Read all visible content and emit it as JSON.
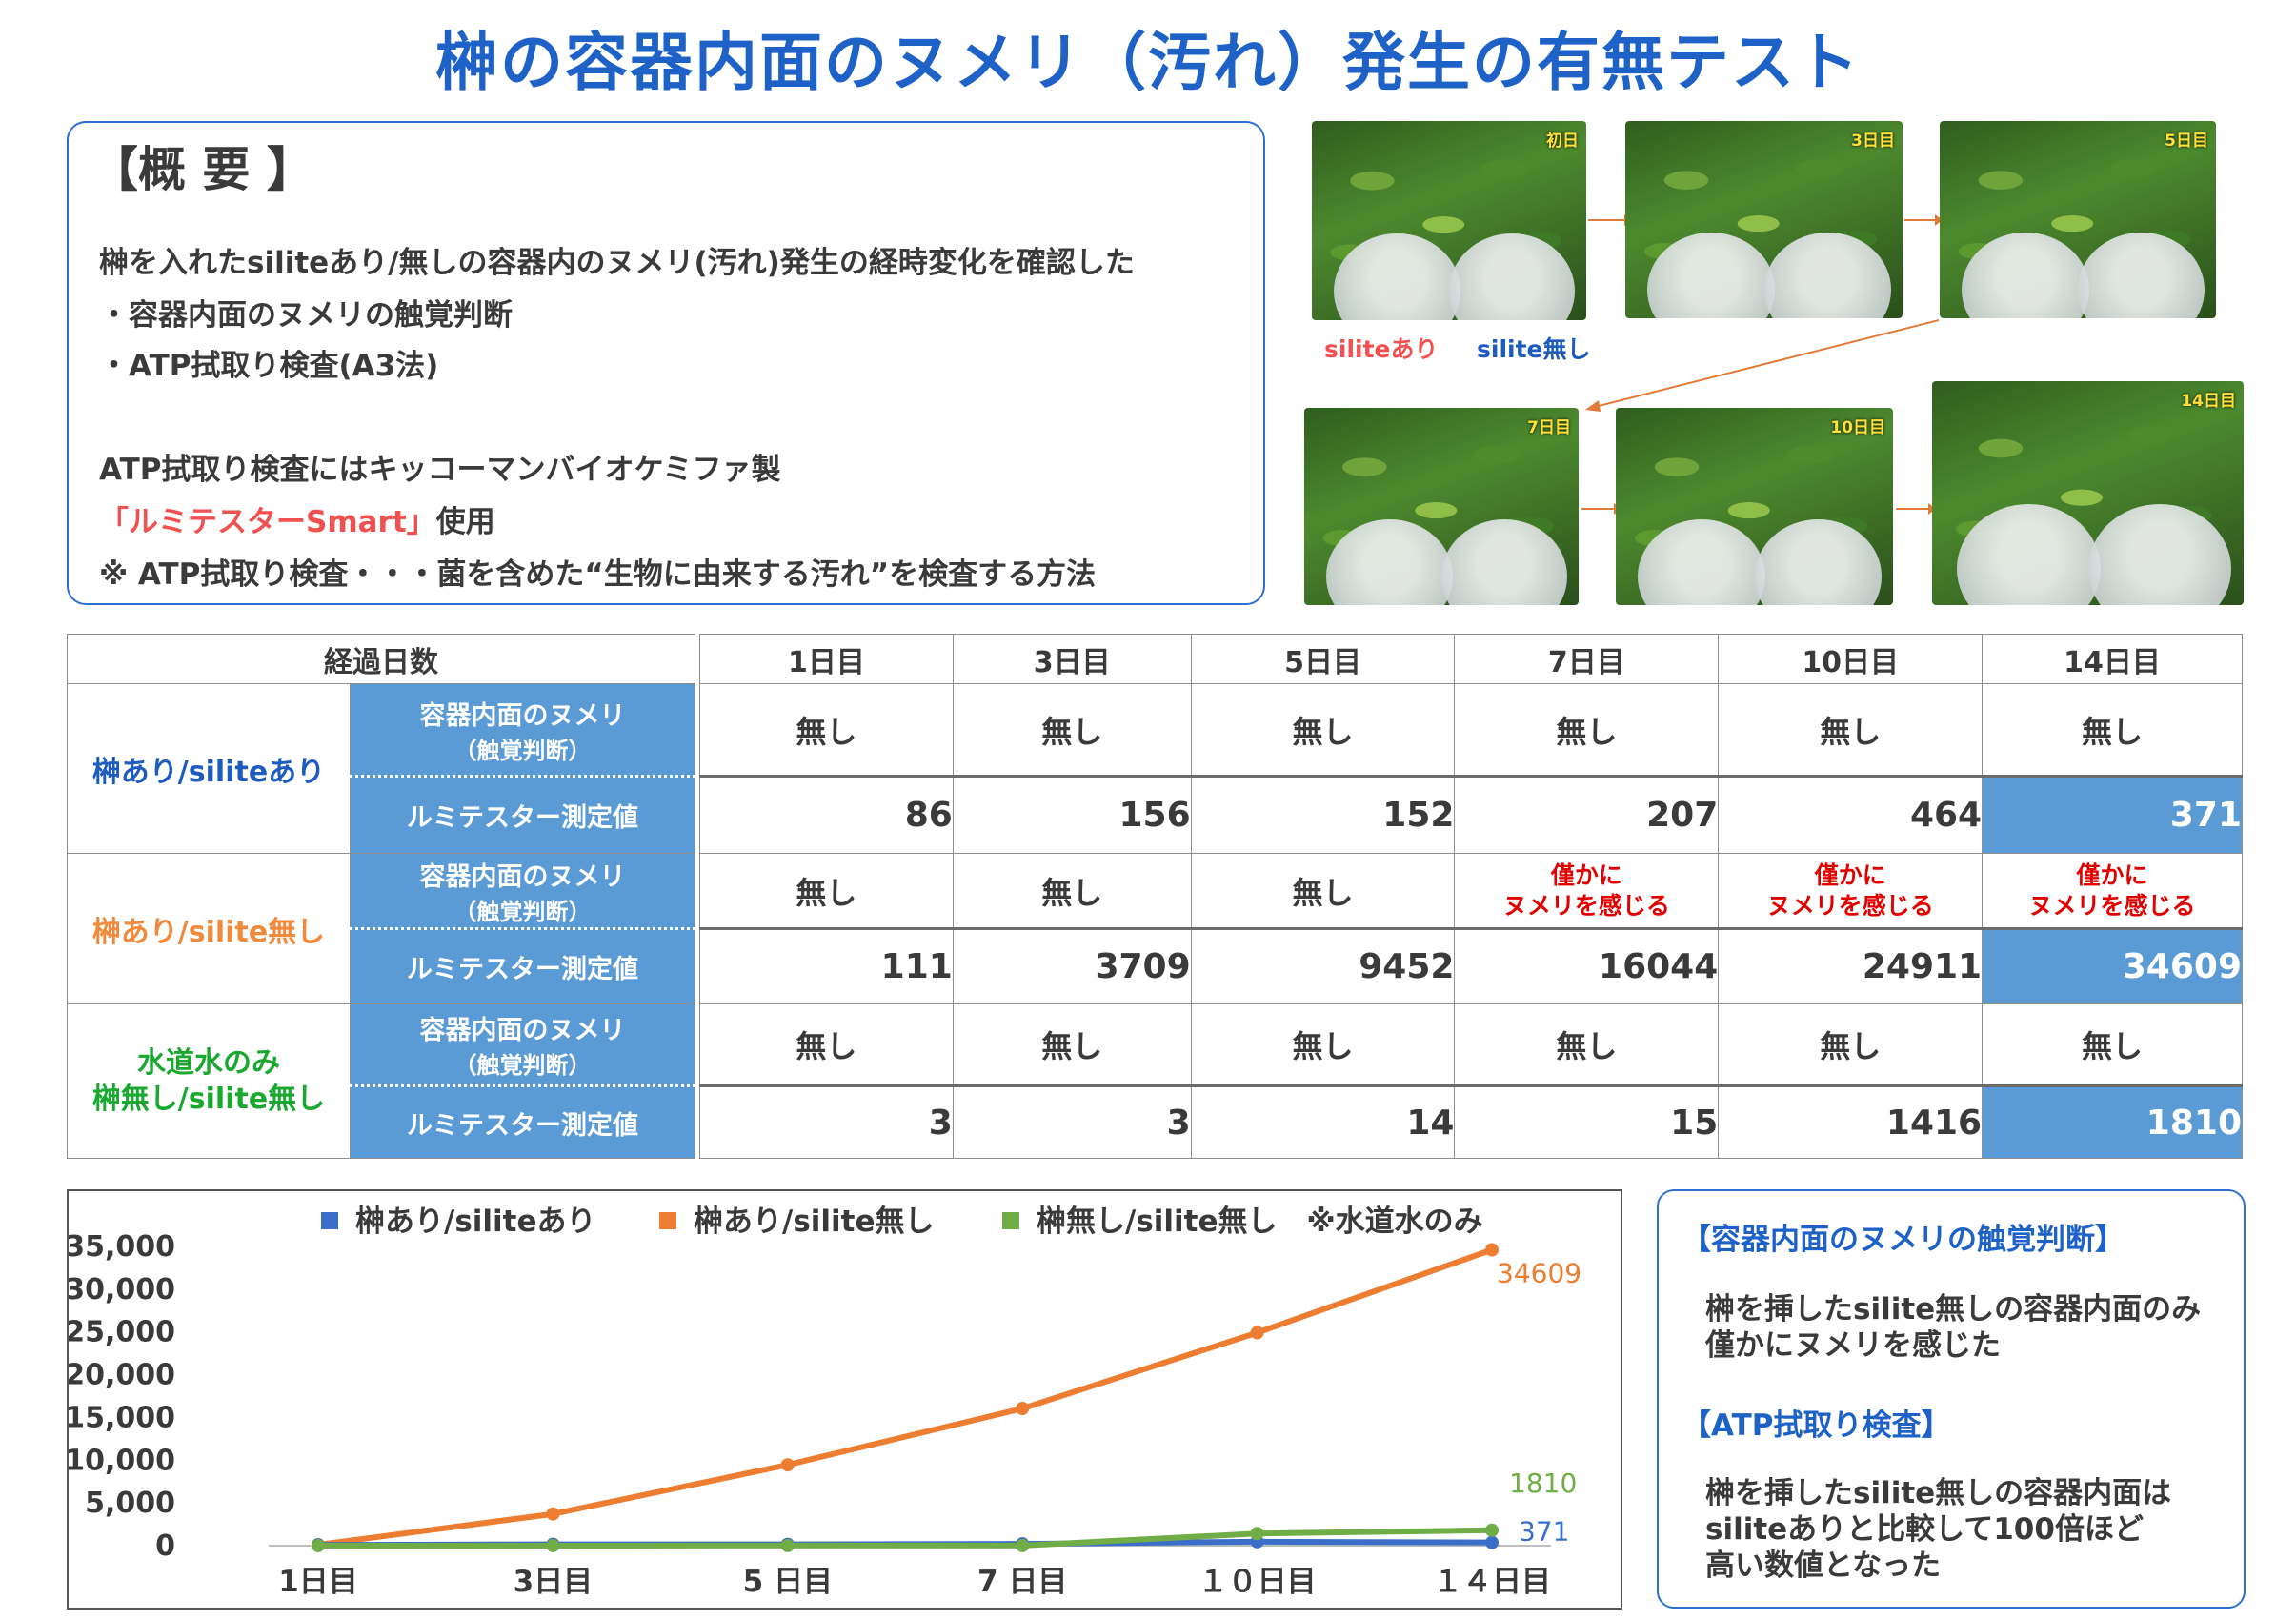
{
  "title": "榊の容器内面のヌメリ（汚れ）発生の有無テスト",
  "summary": {
    "heading": "【概 要 】",
    "lines": [
      "榊を入れたsiliteあり/無しの容器内のヌメリ(汚れ)発生の経時変化を確認した",
      "・容器内面のヌメリの触覚判断",
      "・ATP拭取り検査(A3法)",
      "ATP拭取り検査にはキッコーマンバイオケミファ製",
      "「ルミテスターSmart」",
      "使用",
      "※ ATP拭取り検査・・・菌を含めた“生物に由来する汚れ”を検査する方法"
    ]
  },
  "photos": {
    "labels": [
      "初日",
      "3日目",
      "5日目",
      "7日目",
      "10日目",
      "14日目"
    ],
    "legend_with": "siliteあり",
    "legend_without": "silite無し"
  },
  "table": {
    "corner": "経過日数",
    "days": [
      "1日目",
      "3日目",
      "5日目",
      "7日目",
      "10日目",
      "14日目"
    ],
    "tactile_label_1": "容器内面のヌメリ",
    "tactile_label_2": "（触覚判断）",
    "atp_label": "ルミテスター測定値",
    "groups": [
      {
        "name_line1": "榊あり/siliteあり",
        "name_line2": "",
        "color": "#1e5bbf",
        "tactile": [
          "無し",
          "無し",
          "無し",
          "無し",
          "無し",
          "無し"
        ],
        "atp": [
          "86",
          "156",
          "152",
          "207",
          "464",
          "371"
        ]
      },
      {
        "name_line1": "榊あり/silite無し",
        "name_line2": "",
        "color": "#f08a3c",
        "tactile": [
          "無し",
          "無し",
          "無し",
          "僅かに\nヌメリを感じる",
          "僅かに\nヌメリを感じる",
          "僅かに\nヌメリを感じる"
        ],
        "atp": [
          "111",
          "3709",
          "9452",
          "16044",
          "24911",
          "34609"
        ]
      },
      {
        "name_line1": "水道水のみ",
        "name_line2": "榊無し/silite無し",
        "color": "#1aa830",
        "tactile": [
          "無し",
          "無し",
          "無し",
          "無し",
          "無し",
          "無し"
        ],
        "atp": [
          "3",
          "3",
          "14",
          "15",
          "1416",
          "1810"
        ]
      }
    ]
  },
  "chart_data": {
    "type": "line",
    "categories": [
      "1日目",
      "3日目",
      "5 日目",
      "7 日目",
      "１０日目",
      "１４日目"
    ],
    "series": [
      {
        "name": "榊あり/siliteあり",
        "color": "#3a6ec8",
        "values": [
          86,
          156,
          152,
          207,
          464,
          371
        ],
        "end_label": "371"
      },
      {
        "name": "榊あり/silite無し",
        "color": "#ed7d31",
        "values": [
          111,
          3709,
          9452,
          16044,
          24911,
          34609
        ],
        "end_label": "34609"
      },
      {
        "name": "榊無し/silite無し　※水道水のみ",
        "color": "#70ad47",
        "values": [
          3,
          3,
          14,
          15,
          1416,
          1810
        ],
        "end_label": "1810"
      }
    ],
    "yticks": [
      "35,000",
      "30,000",
      "25,000",
      "20,000",
      "15,000",
      "10,000",
      "5,000",
      "0"
    ],
    "ylim": [
      0,
      35000
    ],
    "grid": false,
    "legend": "top"
  },
  "conclusion": {
    "head1": "【容器内面のヌメリの触覚判断】",
    "body1": [
      "榊を挿したsilite無しの容器内面のみ",
      "僅かにヌメリを感じた"
    ],
    "head2": "【ATP拭取り検査】",
    "body2": [
      "榊を挿したsilite無しの容器内面は",
      "siliteありと比較して100倍ほど",
      "高い数値となった"
    ]
  }
}
